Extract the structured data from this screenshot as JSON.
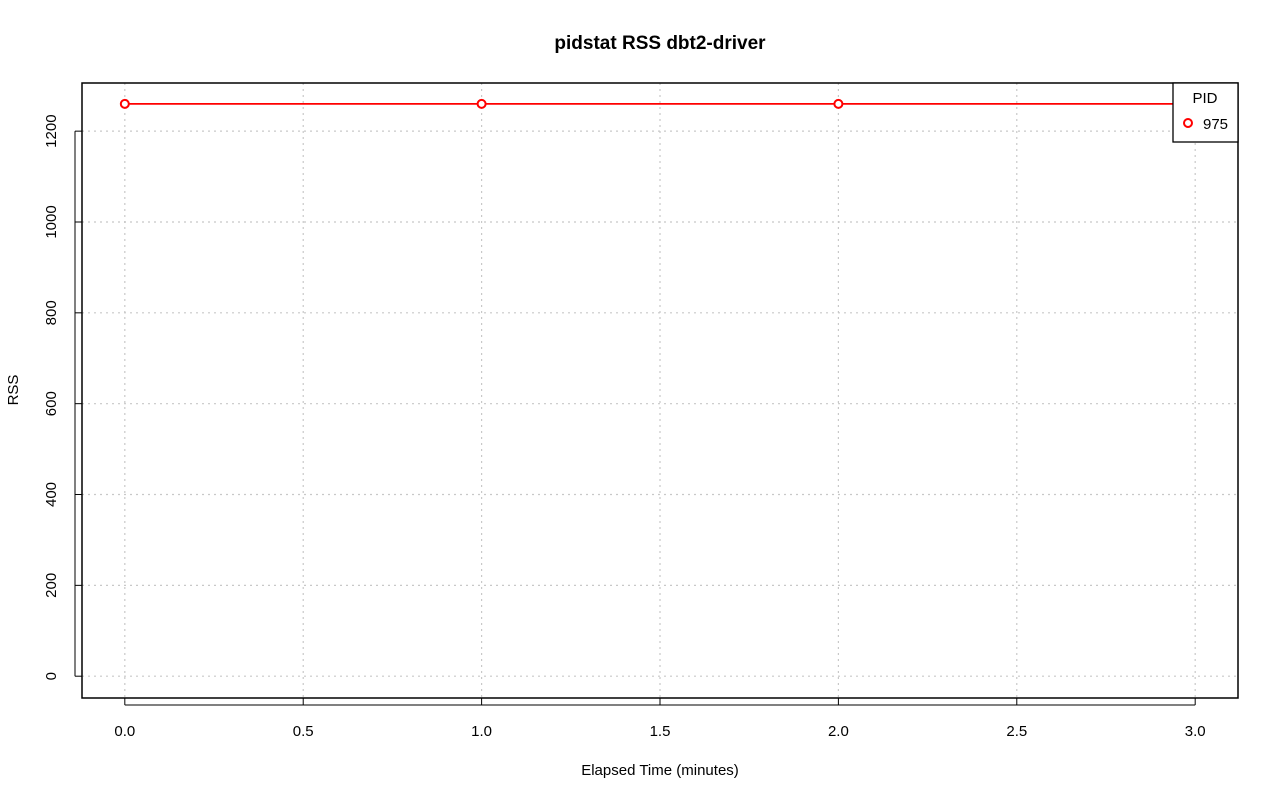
{
  "chart_data": {
    "type": "line",
    "title": "pidstat RSS dbt2-driver",
    "xlabel": "Elapsed Time (minutes)",
    "ylabel": "RSS",
    "xlim": [
      -0.12,
      3.12
    ],
    "ylim": [
      -48,
      1306
    ],
    "x_ticks": [
      "0.0",
      "0.5",
      "1.0",
      "1.5",
      "2.0",
      "2.5",
      "3.0"
    ],
    "y_ticks": [
      "0",
      "200",
      "400",
      "600",
      "800",
      "1000",
      "1200"
    ],
    "grid": true,
    "legend": {
      "title": "PID",
      "position": "top-right"
    },
    "series": [
      {
        "name": "975",
        "color": "#ff0000",
        "x": [
          0,
          1,
          2,
          3
        ],
        "y": [
          1260,
          1260,
          1260,
          1260
        ]
      }
    ]
  }
}
